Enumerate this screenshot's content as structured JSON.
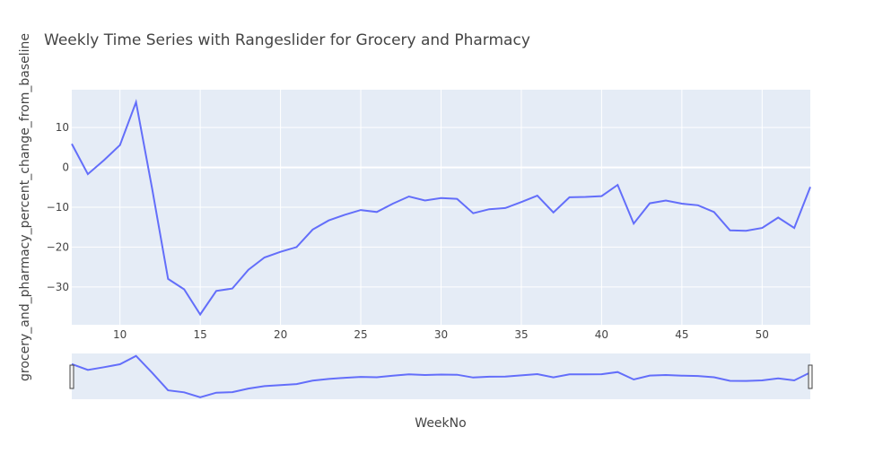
{
  "chart_data": {
    "type": "line",
    "title": "Weekly Time Series with Rangeslider for Grocery and Pharmacy",
    "xlabel": "WeekNo",
    "ylabel": "grocery_and_pharmacy_percent_change_from_baseline",
    "xlim": [
      7,
      53
    ],
    "ylim": [
      -39.5,
      19.5
    ],
    "xticks": [
      10,
      15,
      20,
      25,
      30,
      35,
      40,
      45,
      50
    ],
    "yticks": [
      -30,
      -20,
      -10,
      0,
      10
    ],
    "grid": true,
    "rangeslider": true,
    "series_color": "#636efa",
    "x": [
      7,
      8,
      9,
      10,
      11,
      12,
      13,
      14,
      15,
      16,
      17,
      18,
      19,
      20,
      21,
      22,
      23,
      24,
      25,
      26,
      27,
      28,
      29,
      30,
      31,
      32,
      33,
      34,
      35,
      36,
      37,
      38,
      39,
      40,
      41,
      42,
      43,
      44,
      45,
      46,
      47,
      48,
      49,
      50,
      51,
      52,
      53
    ],
    "y": [
      5.9,
      -1.7,
      1.8,
      5.6,
      16.4,
      -5.3,
      -28.0,
      -30.6,
      -36.9,
      -31.0,
      -30.4,
      -25.7,
      -22.6,
      -21.2,
      -20.0,
      -15.6,
      -13.3,
      -11.9,
      -10.7,
      -11.2,
      -9.1,
      -7.3,
      -8.3,
      -7.7,
      -7.9,
      -11.5,
      -10.5,
      -10.2,
      -8.7,
      -7.1,
      -11.3,
      -7.5,
      -7.4,
      -7.2,
      -4.4,
      -14.1,
      -9.0,
      -8.3,
      -9.1,
      -9.5,
      -11.2,
      -15.8,
      -15.9,
      -15.2,
      -12.6,
      -15.2,
      -4.9
    ]
  }
}
